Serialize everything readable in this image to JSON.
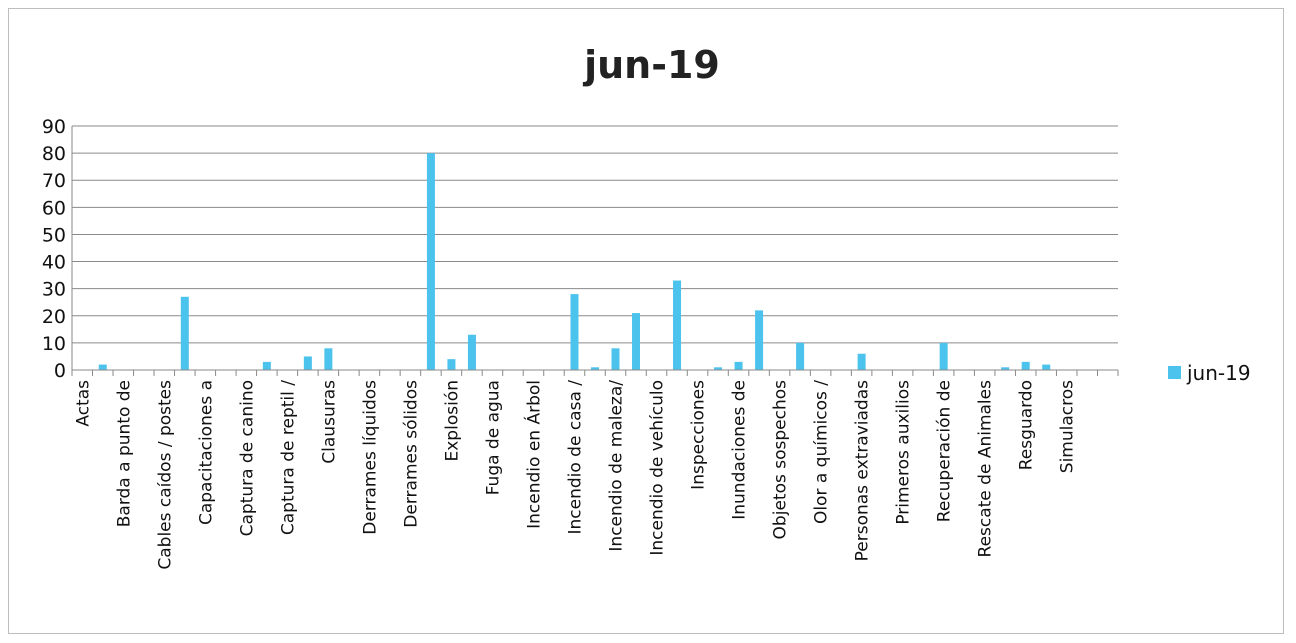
{
  "chart_data": {
    "type": "bar",
    "title": "jun-19",
    "xlabel": "",
    "ylabel": "",
    "ylim": [
      0,
      90
    ],
    "yticks": [
      0,
      10,
      20,
      30,
      40,
      50,
      60,
      70,
      80,
      90
    ],
    "grid": true,
    "legend_position": "right",
    "bar_color": "#4cc3ec",
    "slots": [
      "Actas",
      "",
      "Barda a punto de",
      "",
      "Cables caídos / postes",
      "",
      "Capacitaciones a",
      "",
      "Captura de canino",
      "",
      "Captura de reptil /",
      "",
      "Clausuras",
      "",
      "Derrames líquidos",
      "",
      "Derrames sólidos",
      "",
      "Explosión",
      "",
      "Fuga de agua",
      "",
      "Incendio en Árbol",
      "",
      "Incendio de casa /",
      "",
      "Incendio de maleza/",
      "",
      "Incendio de vehículo",
      "",
      "Inspecciones",
      "",
      "Inundaciones de",
      "",
      "Objetos sospechos",
      "",
      "Olor a químicos /",
      "",
      "Personas extraviadas",
      "",
      "Primeros auxilios",
      "",
      "Recuperación de",
      "",
      "Rescate de Animales",
      "",
      "Resguardo",
      "",
      "Simulacros"
    ],
    "series": [
      {
        "name": "jun-19",
        "values": [
          0,
          2,
          0,
          0,
          0,
          27,
          0,
          0,
          0,
          3,
          0,
          5,
          8,
          0,
          0,
          0,
          0,
          80,
          4,
          13,
          0,
          0,
          0,
          0,
          28,
          1,
          8,
          21,
          0,
          33,
          0,
          1,
          3,
          22,
          0,
          10,
          0,
          0,
          6,
          0,
          0,
          0,
          10,
          0,
          0,
          1,
          3,
          2,
          0,
          0,
          0
        ]
      }
    ]
  }
}
